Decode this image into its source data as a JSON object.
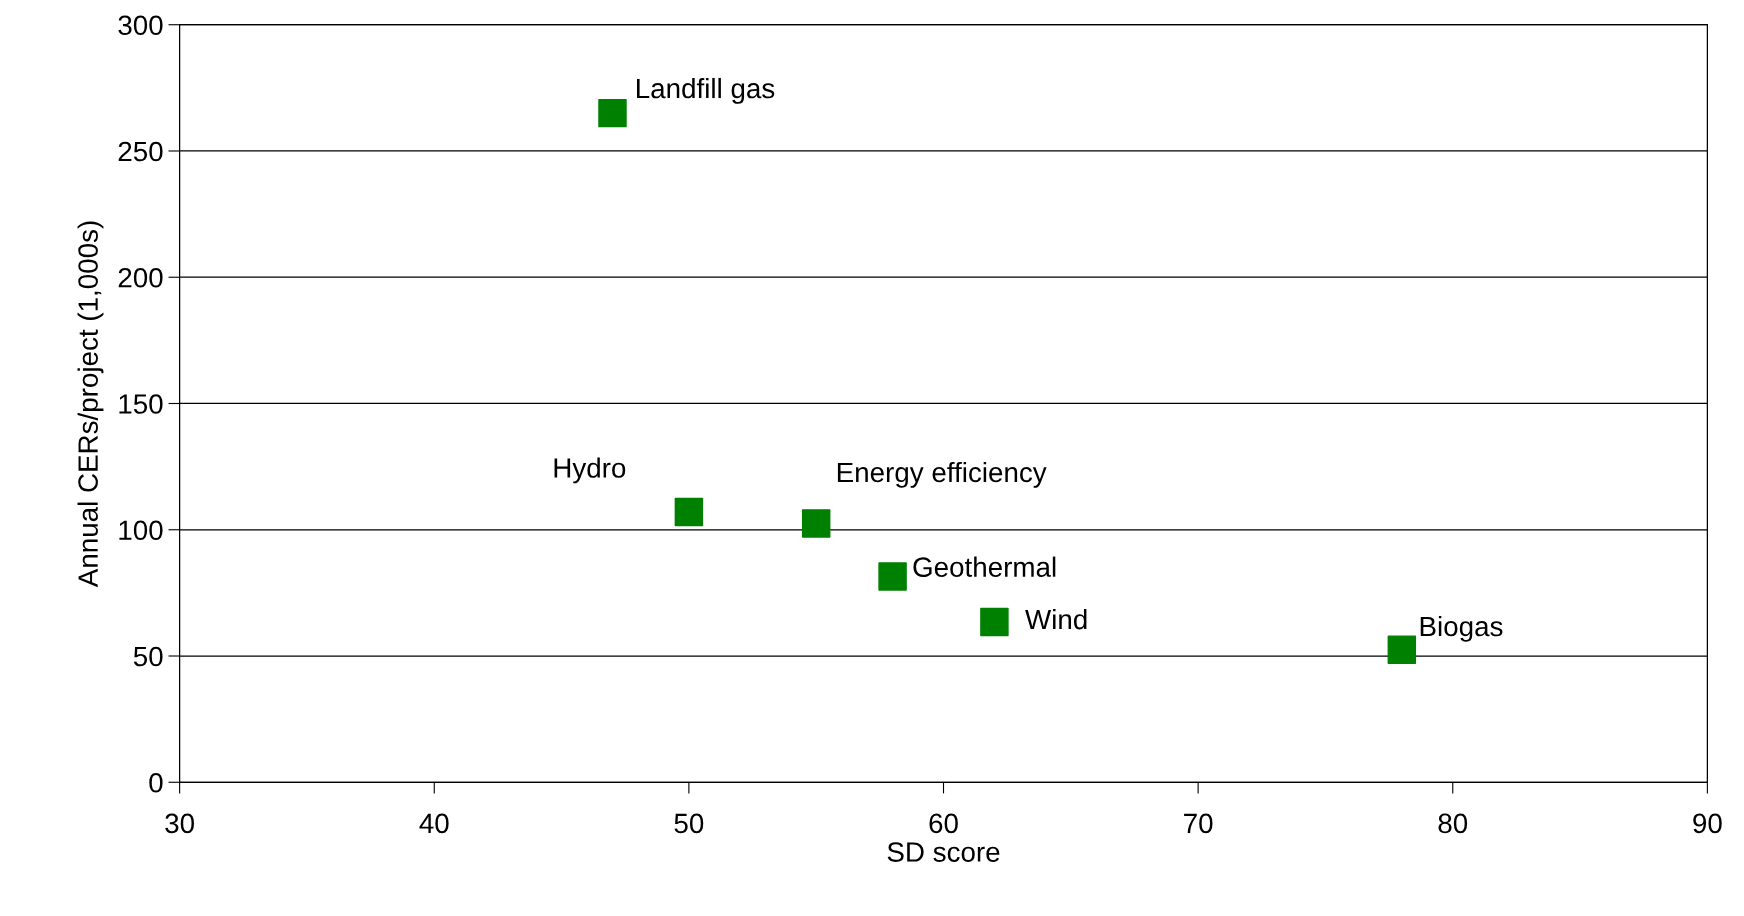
{
  "chart_data": {
    "type": "scatter",
    "xlabel": "SD score",
    "ylabel": "Annual CERs/project (1,000s)",
    "x": [
      47,
      50,
      55,
      58,
      62,
      78
    ],
    "series": [
      {
        "color": "#008000",
        "values": [
          265,
          107,
          102.5,
          81.5,
          63.5,
          52.5
        ]
      }
    ],
    "marker": "square",
    "annotations": [
      {
        "text": "Landfill gas",
        "x": 47,
        "y": 265
      },
      {
        "text": "Hydro",
        "x": 50,
        "y": 107
      },
      {
        "text": "Energy efficiency",
        "x": 55,
        "y": 102.5
      },
      {
        "text": "Geothermal",
        "x": 58,
        "y": 81.5
      },
      {
        "text": "Wind",
        "x": 62,
        "y": 63.5
      },
      {
        "text": "Biogas",
        "x": 78,
        "y": 52.5
      }
    ],
    "xlim": [
      30,
      90
    ],
    "xticks": [
      30,
      40,
      50,
      60,
      70,
      80,
      90
    ],
    "ylim": [
      0,
      300
    ],
    "yticks": [
      0,
      50,
      100,
      150,
      200,
      250,
      300
    ],
    "grid": "y"
  }
}
